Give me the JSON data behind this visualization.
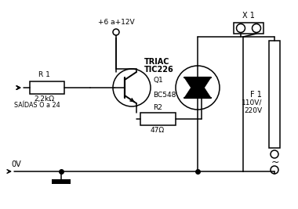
{
  "bg_color": "#ffffff",
  "line_color": "#000000",
  "labels": {
    "r1": "R 1",
    "r1_val": "2,2kΩ",
    "q1": "Q1",
    "q1_val": "BC548",
    "triac": "TRIAC",
    "triac_val": "TIC226",
    "r2": "R2",
    "r2_val": "47Ω",
    "x1": "X 1",
    "f1": "F 1",
    "vcc": "+6 a+12V",
    "vac": "110V/\n220V",
    "saidas": "SAÍDAS O a 24",
    "gnd": "0V"
  }
}
